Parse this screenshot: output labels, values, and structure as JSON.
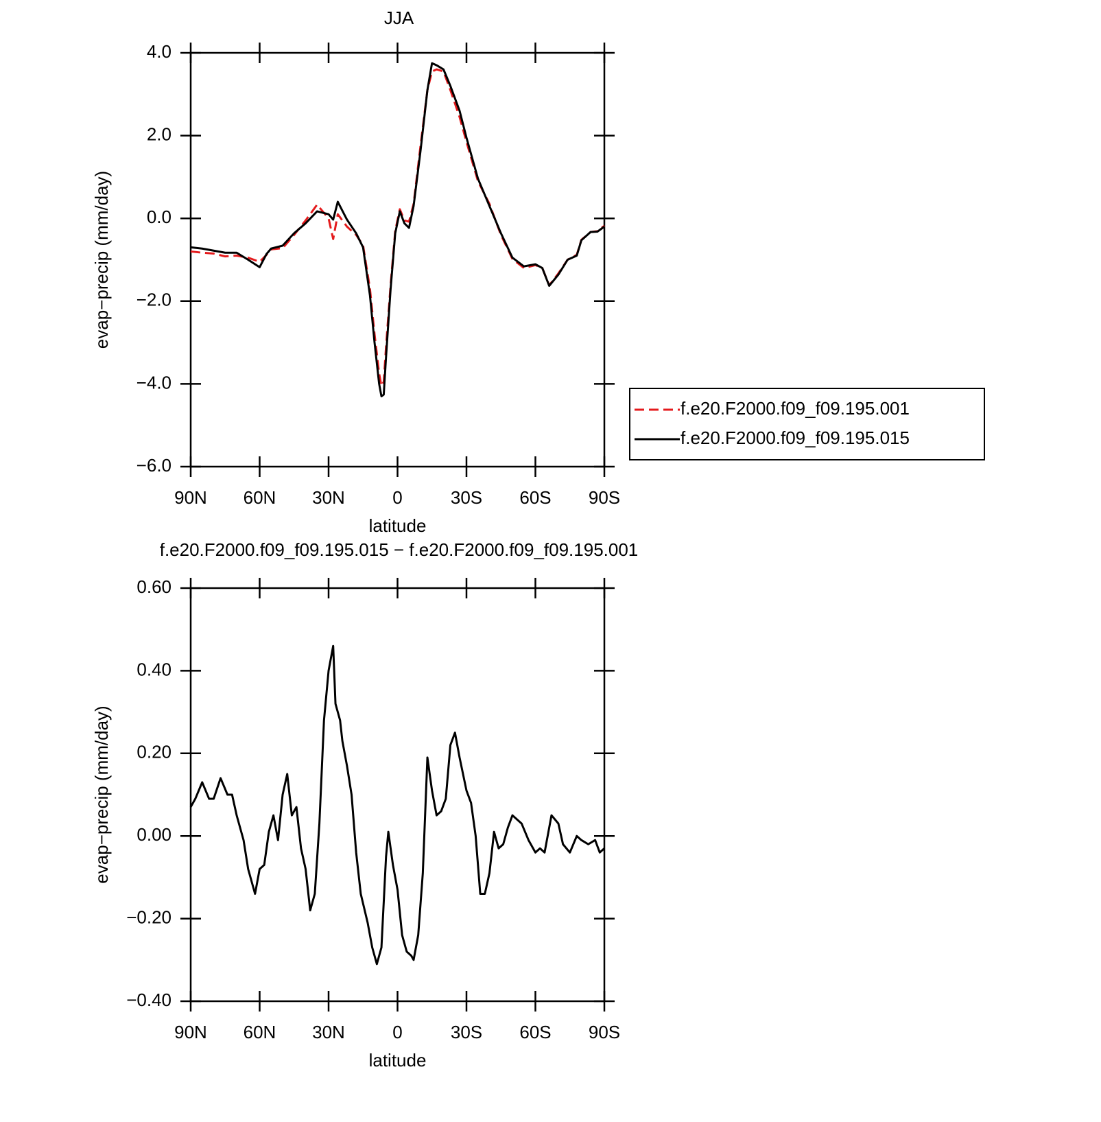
{
  "chart_data": [
    {
      "type": "line",
      "title": "JJA",
      "xlabel": "latitude",
      "ylabel": "evap−precip (mm/day)",
      "x": [
        90,
        85,
        80,
        75,
        70,
        65,
        60,
        57,
        55,
        50,
        45,
        40,
        35,
        30,
        28,
        26,
        22,
        18,
        15,
        12,
        10,
        8,
        7,
        6,
        5,
        3,
        1,
        -1,
        -3,
        -5,
        -7,
        -10,
        -13,
        -15,
        -17,
        -20,
        -23,
        -27,
        -30,
        -35,
        -40,
        -45,
        -50,
        -55,
        -60,
        -63,
        -66,
        -70,
        -74,
        -78,
        -80,
        -84,
        -87,
        -90
      ],
      "series": [
        {
          "name": "f.e20.F2000.f09_f09.195.001",
          "color": "#e41a1c",
          "dashed": true,
          "values": [
            -0.8,
            -0.83,
            -0.85,
            -0.92,
            -0.9,
            -0.95,
            -1.05,
            -0.88,
            -0.75,
            -0.72,
            -0.4,
            -0.05,
            0.33,
            0.0,
            -0.5,
            0.1,
            -0.2,
            -0.4,
            -0.65,
            -1.7,
            -2.8,
            -3.75,
            -4.05,
            -3.95,
            -3.1,
            -1.6,
            -0.3,
            0.22,
            -0.05,
            -0.08,
            0.35,
            1.75,
            3.1,
            3.55,
            3.6,
            3.55,
            3.1,
            2.45,
            1.85,
            0.9,
            0.35,
            -0.4,
            -0.98,
            -1.2,
            -1.13,
            -1.2,
            -1.62,
            -1.33,
            -1.0,
            -0.88,
            -0.52,
            -0.33,
            -0.31,
            -0.18
          ]
        },
        {
          "name": "f.e20.F2000.f09_f09.195.015",
          "color": "#000000",
          "dashed": false,
          "values": [
            -0.7,
            -0.73,
            -0.78,
            -0.83,
            -0.83,
            -1.0,
            -1.18,
            -0.86,
            -0.73,
            -0.66,
            -0.36,
            -0.12,
            0.17,
            0.1,
            -0.03,
            0.4,
            -0.03,
            -0.36,
            -0.7,
            -1.86,
            -3.0,
            -4.0,
            -4.3,
            -4.26,
            -3.35,
            -1.7,
            -0.36,
            0.17,
            -0.12,
            -0.23,
            0.3,
            1.63,
            3.1,
            3.75,
            3.7,
            3.6,
            3.2,
            2.6,
            1.95,
            0.96,
            0.3,
            -0.36,
            -0.95,
            -1.16,
            -1.11,
            -1.2,
            -1.63,
            -1.36,
            -1.0,
            -0.9,
            -0.53,
            -0.33,
            -0.32,
            -0.2
          ]
        }
      ],
      "xlim": [
        90,
        -90
      ],
      "xticks": [
        {
          "value": 90,
          "label": "90N"
        },
        {
          "value": 60,
          "label": "60N"
        },
        {
          "value": 30,
          "label": "30N"
        },
        0,
        {
          "value": -30,
          "label": "30S"
        },
        {
          "value": -60,
          "label": "60S"
        },
        {
          "value": -90,
          "label": "90S"
        }
      ],
      "ylim": [
        -6,
        4
      ],
      "yticks": [
        {
          "value": 4,
          "label": "4.0"
        },
        {
          "value": 2,
          "label": "2.0"
        },
        {
          "value": 0,
          "label": "0.0"
        },
        {
          "value": -2,
          "label": "−2.0"
        },
        {
          "value": -4,
          "label": "−4.0"
        },
        {
          "value": -6,
          "label": "−6.0"
        }
      ],
      "legend": "outside-right",
      "grid": false
    },
    {
      "type": "line",
      "title": "f.e20.F2000.f09_f09.195.015 − f.e20.F2000.f09_f09.195.001",
      "xlabel": "latitude",
      "ylabel": "evap−precip (mm/day)",
      "x": [
        90,
        88,
        85,
        82,
        80,
        77,
        74,
        72,
        70,
        67,
        65,
        62,
        60,
        58,
        56,
        54,
        52,
        50,
        48,
        46,
        44,
        42,
        40,
        38,
        36,
        34,
        32,
        30,
        28,
        27,
        25,
        24,
        22,
        20,
        18,
        16,
        13,
        11,
        9,
        7,
        5,
        4,
        2,
        0,
        -2,
        -4,
        -6,
        -7,
        -9,
        -11,
        -13,
        -15,
        -17,
        -19,
        -21,
        -23,
        -25,
        -27,
        -30,
        -32,
        -34,
        -36,
        -38,
        -40,
        -42,
        -44,
        -46,
        -48,
        -50,
        -52,
        -54,
        -57,
        -60,
        -62,
        -64,
        -67,
        -70,
        -72,
        -75,
        -78,
        -80,
        -83,
        -86,
        -88,
        -90
      ],
      "values": [
        0.07,
        0.09,
        0.13,
        0.09,
        0.09,
        0.14,
        0.1,
        0.1,
        0.05,
        -0.01,
        -0.08,
        -0.14,
        -0.08,
        -0.07,
        0.01,
        0.05,
        -0.01,
        0.1,
        0.15,
        0.05,
        0.07,
        -0.03,
        -0.08,
        -0.18,
        -0.14,
        0.03,
        0.28,
        0.4,
        0.46,
        0.32,
        0.28,
        0.23,
        0.17,
        0.1,
        -0.04,
        -0.14,
        -0.21,
        -0.27,
        -0.31,
        -0.27,
        -0.05,
        0.01,
        -0.07,
        -0.13,
        -0.24,
        -0.28,
        -0.29,
        -0.3,
        -0.24,
        -0.09,
        0.19,
        0.11,
        0.05,
        0.06,
        0.09,
        0.22,
        0.25,
        0.19,
        0.11,
        0.08,
        0,
        -0.14,
        -0.14,
        -0.09,
        0.01,
        -0.03,
        -0.02,
        0.02,
        0.05,
        0.04,
        0.03,
        -0.01,
        -0.04,
        -0.03,
        -0.04,
        0.05,
        0.03,
        -0.02,
        -0.04,
        0,
        -0.01,
        -0.02,
        -0.01,
        -0.04,
        -0.03
      ],
      "color": "#000000",
      "xlim": [
        90,
        -90
      ],
      "xticks": [
        {
          "value": 90,
          "label": "90N"
        },
        {
          "value": 60,
          "label": "60N"
        },
        {
          "value": 30,
          "label": "30N"
        },
        0,
        {
          "value": -30,
          "label": "30S"
        },
        {
          "value": -60,
          "label": "60S"
        },
        {
          "value": -90,
          "label": "90S"
        }
      ],
      "ylim": [
        -0.4,
        0.6
      ],
      "yticks": [
        {
          "value": 0.6,
          "label": "0.60"
        },
        {
          "value": 0.4,
          "label": "0.40"
        },
        {
          "value": 0.2,
          "label": "0.20"
        },
        {
          "value": 0,
          "label": "0.00"
        },
        {
          "value": -0.2,
          "label": "−0.20"
        },
        {
          "value": -0.4,
          "label": "−0.40"
        }
      ],
      "grid": false
    }
  ]
}
